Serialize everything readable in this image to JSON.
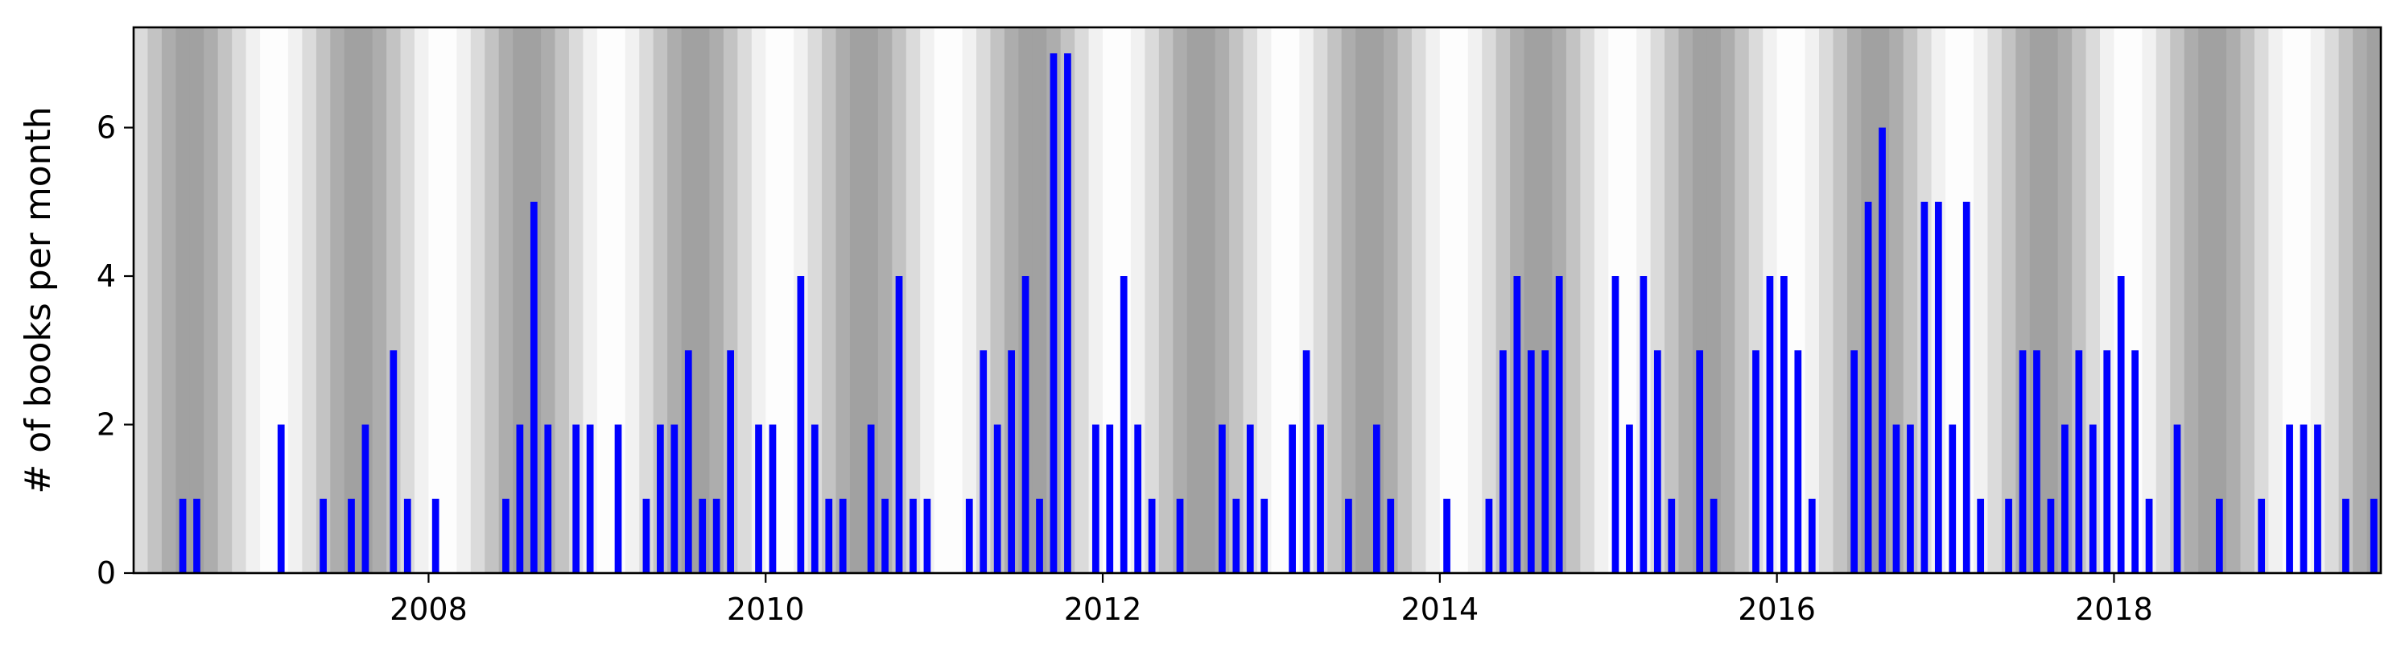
{
  "chart_data": {
    "type": "bar",
    "title": "",
    "xlabel": "",
    "ylabel": "# of books per month",
    "x_axis": {
      "kind": "date",
      "range": [
        "2006-04",
        "2019-08"
      ],
      "ticks": [
        "2008",
        "2010",
        "2012",
        "2014",
        "2016",
        "2018"
      ]
    },
    "y_axis": {
      "range": [
        0,
        7.35
      ],
      "ticks": [
        0,
        2,
        4,
        6
      ]
    },
    "grid": false,
    "legend": "none",
    "background": "grey bands shading each calendar month, lightest around June/July and darkest around December/January",
    "colors": {
      "bar": "#0000ff"
    },
    "series": [
      {
        "points": [
          [
            "2006-07",
            1
          ],
          [
            "2006-08",
            1
          ],
          [
            "2007-02",
            2
          ],
          [
            "2007-05",
            1
          ],
          [
            "2007-07",
            1
          ],
          [
            "2007-08",
            2
          ],
          [
            "2007-10",
            3
          ],
          [
            "2007-11",
            1
          ],
          [
            "2008-01",
            1
          ],
          [
            "2008-06",
            1
          ],
          [
            "2008-07",
            2
          ],
          [
            "2008-08",
            5
          ],
          [
            "2008-09",
            2
          ],
          [
            "2008-11",
            2
          ],
          [
            "2008-12",
            2
          ],
          [
            "2009-02",
            2
          ],
          [
            "2009-04",
            1
          ],
          [
            "2009-05",
            2
          ],
          [
            "2009-06",
            2
          ],
          [
            "2009-07",
            3
          ],
          [
            "2009-08",
            1
          ],
          [
            "2009-09",
            1
          ],
          [
            "2009-10",
            3
          ],
          [
            "2009-12",
            2
          ],
          [
            "2010-01",
            2
          ],
          [
            "2010-03",
            4
          ],
          [
            "2010-04",
            2
          ],
          [
            "2010-05",
            1
          ],
          [
            "2010-06",
            1
          ],
          [
            "2010-08",
            2
          ],
          [
            "2010-09",
            1
          ],
          [
            "2010-10",
            4
          ],
          [
            "2010-11",
            1
          ],
          [
            "2010-12",
            1
          ],
          [
            "2011-03",
            1
          ],
          [
            "2011-04",
            3
          ],
          [
            "2011-05",
            2
          ],
          [
            "2011-06",
            3
          ],
          [
            "2011-07",
            4
          ],
          [
            "2011-08",
            1
          ],
          [
            "2011-09",
            7
          ],
          [
            "2011-10",
            7
          ],
          [
            "2011-12",
            2
          ],
          [
            "2012-01",
            2
          ],
          [
            "2012-02",
            4
          ],
          [
            "2012-03",
            2
          ],
          [
            "2012-04",
            1
          ],
          [
            "2012-06",
            1
          ],
          [
            "2012-09",
            2
          ],
          [
            "2012-10",
            1
          ],
          [
            "2012-11",
            2
          ],
          [
            "2012-12",
            1
          ],
          [
            "2013-02",
            2
          ],
          [
            "2013-03",
            3
          ],
          [
            "2013-04",
            2
          ],
          [
            "2013-06",
            1
          ],
          [
            "2013-08",
            2
          ],
          [
            "2013-09",
            1
          ],
          [
            "2014-01",
            1
          ],
          [
            "2014-04",
            1
          ],
          [
            "2014-05",
            3
          ],
          [
            "2014-06",
            4
          ],
          [
            "2014-07",
            3
          ],
          [
            "2014-08",
            3
          ],
          [
            "2014-09",
            4
          ],
          [
            "2015-01",
            4
          ],
          [
            "2015-02",
            2
          ],
          [
            "2015-03",
            4
          ],
          [
            "2015-04",
            3
          ],
          [
            "2015-05",
            1
          ],
          [
            "2015-07",
            3
          ],
          [
            "2015-08",
            1
          ],
          [
            "2015-11",
            3
          ],
          [
            "2015-12",
            4
          ],
          [
            "2016-01",
            4
          ],
          [
            "2016-02",
            3
          ],
          [
            "2016-03",
            1
          ],
          [
            "2016-06",
            3
          ],
          [
            "2016-07",
            5
          ],
          [
            "2016-08",
            6
          ],
          [
            "2016-09",
            2
          ],
          [
            "2016-10",
            2
          ],
          [
            "2016-11",
            5
          ],
          [
            "2016-12",
            5
          ],
          [
            "2017-01",
            2
          ],
          [
            "2017-02",
            5
          ],
          [
            "2017-03",
            1
          ],
          [
            "2017-05",
            1
          ],
          [
            "2017-06",
            3
          ],
          [
            "2017-07",
            3
          ],
          [
            "2017-08",
            1
          ],
          [
            "2017-09",
            2
          ],
          [
            "2017-10",
            3
          ],
          [
            "2017-11",
            2
          ],
          [
            "2017-12",
            3
          ],
          [
            "2018-01",
            4
          ],
          [
            "2018-02",
            3
          ],
          [
            "2018-03",
            1
          ],
          [
            "2018-05",
            2
          ],
          [
            "2018-08",
            1
          ],
          [
            "2018-11",
            1
          ],
          [
            "2019-01",
            2
          ],
          [
            "2019-02",
            2
          ],
          [
            "2019-03",
            2
          ],
          [
            "2019-05",
            1
          ],
          [
            "2019-07",
            1
          ]
        ]
      }
    ]
  }
}
